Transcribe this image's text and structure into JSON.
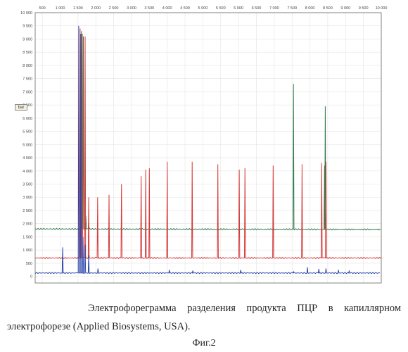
{
  "chart_data": {
    "type": "line",
    "x_ticks": [
      "500",
      "1 000",
      "1 500",
      "2 000",
      "2 500",
      "3 000",
      "3 500",
      "4 000",
      "4 500",
      "5 000",
      "5 500",
      "6 000",
      "6 500",
      "7 000",
      "7 500",
      "8 000",
      "8 500",
      "9 000",
      "9 500",
      "10 000"
    ],
    "y_ticks": [
      "10 000",
      "9 500",
      "9 000",
      "8 500",
      "8 000",
      "7 500",
      "7 000",
      "6 500",
      "6 000",
      "5 500",
      "5 000",
      "4 500",
      "4 000",
      "3 500",
      "3 000",
      "2 500",
      "2 000",
      "1 500",
      "1 000",
      "500",
      "0"
    ],
    "xlim": [
      300,
      10000
    ],
    "ylim": [
      -250,
      10000
    ],
    "grid": true,
    "series": [
      {
        "color": "#2f7a48",
        "baseline": 1800,
        "baseline_end": 1780,
        "peaks": [
          [
            1600,
            9300
          ],
          [
            1650,
            9100
          ],
          [
            1720,
            2300
          ],
          [
            1800,
            2100
          ],
          [
            7540,
            7300
          ],
          [
            8430,
            6450
          ],
          [
            8410,
            4200
          ]
        ]
      },
      {
        "color": "#d63a3a",
        "baseline": 700,
        "peaks": [
          [
            1560,
            9400
          ],
          [
            1620,
            9200
          ],
          [
            1700,
            9100
          ],
          [
            1800,
            3000
          ],
          [
            2050,
            3000
          ],
          [
            2370,
            3100
          ],
          [
            2720,
            3500
          ],
          [
            3270,
            3800
          ],
          [
            3400,
            4050
          ],
          [
            3500,
            4100
          ],
          [
            4000,
            4350
          ],
          [
            4700,
            4350
          ],
          [
            5420,
            4250
          ],
          [
            6020,
            4050
          ],
          [
            6180,
            4100
          ],
          [
            6970,
            4200
          ],
          [
            7780,
            4250
          ],
          [
            8330,
            4300
          ],
          [
            8450,
            4350
          ]
        ]
      },
      {
        "color": "#2b45a8",
        "baseline": 130,
        "peaks": [
          [
            1070,
            1100
          ],
          [
            1520,
            9500
          ],
          [
            1580,
            9200
          ],
          [
            1640,
            1500
          ],
          [
            1700,
            1200
          ],
          [
            1800,
            800
          ],
          [
            2060,
            300
          ],
          [
            4060,
            250
          ],
          [
            4720,
            220
          ],
          [
            6060,
            240
          ],
          [
            7540,
            180
          ],
          [
            7930,
            350
          ],
          [
            8250,
            280
          ],
          [
            8450,
            300
          ],
          [
            8800,
            250
          ],
          [
            9100,
            200
          ]
        ]
      }
    ]
  },
  "flag_label": "bar",
  "caption": {
    "line1": "Электрофореграмма разделения продукта ПЦР в капиллярном",
    "line2": "электрофорезе (Applied Biosystems, USA)."
  },
  "figure_label": "Фиг.2"
}
